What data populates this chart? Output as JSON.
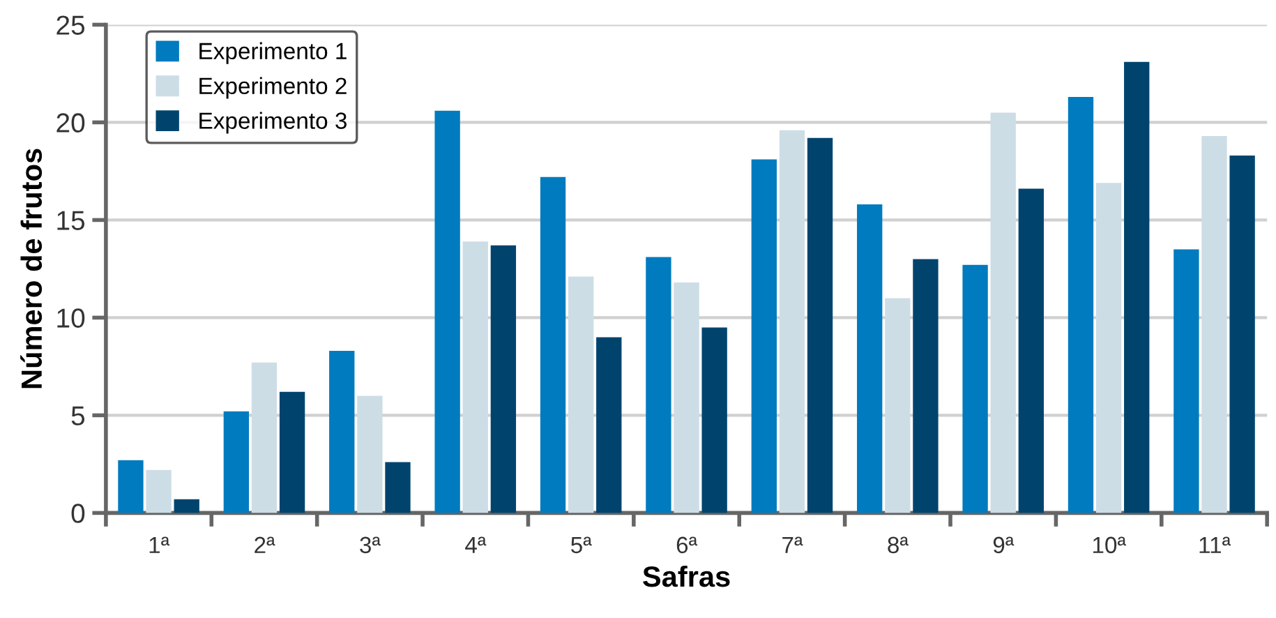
{
  "chart_data": {
    "type": "bar",
    "xlabel": "Safras",
    "ylabel": "Número de frutos",
    "categories": [
      "1ª",
      "2ª",
      "3ª",
      "4ª",
      "5ª",
      "6ª",
      "7ª",
      "8ª",
      "9ª",
      "10ª",
      "11ª"
    ],
    "series": [
      {
        "name": "Experimento 1",
        "color": "#007bbf",
        "values": [
          2.7,
          5.2,
          8.3,
          20.6,
          17.2,
          13.1,
          18.1,
          15.8,
          12.7,
          21.3,
          13.5
        ]
      },
      {
        "name": "Experimento 2",
        "color": "#cddde6",
        "values": [
          2.2,
          7.7,
          6.0,
          13.9,
          12.1,
          11.8,
          19.6,
          11.0,
          20.5,
          16.9,
          19.3
        ]
      },
      {
        "name": "Experimento 3",
        "color": "#00446e",
        "values": [
          0.7,
          6.2,
          2.6,
          13.7,
          9.0,
          9.5,
          19.2,
          13.0,
          16.6,
          23.1,
          18.3
        ]
      }
    ],
    "ylim": [
      0,
      25
    ],
    "yticks": [
      0,
      5,
      10,
      15,
      20,
      25
    ],
    "grid": "y",
    "legend": "top left"
  }
}
